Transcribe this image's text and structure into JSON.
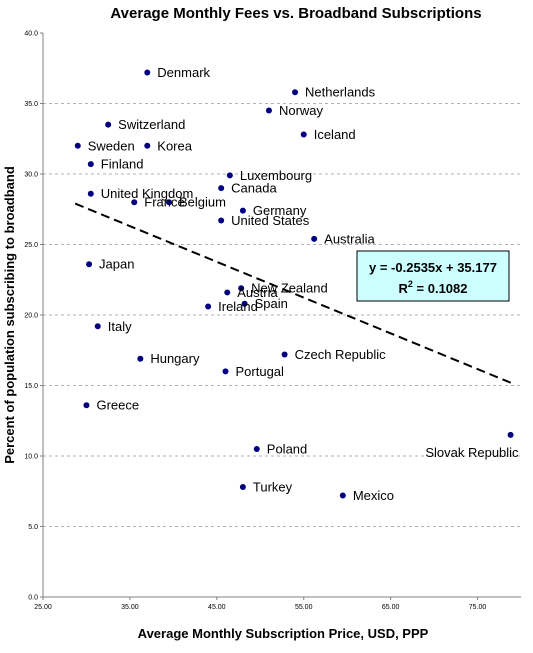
{
  "chart_data": {
    "type": "scatter",
    "title": "Average Monthly Fees vs. Broadband Subscriptions",
    "xlabel": "Average Monthly Subscription Price, USD, PPP",
    "ylabel": "Percent of population subscribing to broadband",
    "xlim": [
      25,
      80
    ],
    "ylim": [
      0,
      40
    ],
    "x_ticks": [
      "25.00",
      "35.00",
      "45.00",
      "55.00",
      "65.00",
      "75.00"
    ],
    "y_ticks": [
      "0.0",
      "5.0",
      "10.0",
      "15.0",
      "20.0",
      "25.0",
      "30.0",
      "35.0",
      "40.0"
    ],
    "grid": "horizontal dashed",
    "marker_color": "#000080",
    "trendline": {
      "slope": -0.2535,
      "intercept": 35.177,
      "style": "dashed"
    },
    "equation": {
      "line1": "y = -0.2535x + 35.177",
      "r2_prefix": "R",
      "r2_sup": "2",
      "r2_suffix": " = 0.1082"
    },
    "equation_box_color": "#ccffff",
    "points": [
      {
        "label": "Denmark",
        "x": 37.0,
        "y": 37.2,
        "label_pos": "right"
      },
      {
        "label": "Netherlands",
        "x": 54.0,
        "y": 35.8,
        "label_pos": "right"
      },
      {
        "label": "Norway",
        "x": 51.0,
        "y": 34.5,
        "label_pos": "right"
      },
      {
        "label": "Switzerland",
        "x": 32.5,
        "y": 33.5,
        "label_pos": "right"
      },
      {
        "label": "Iceland",
        "x": 55.0,
        "y": 32.8,
        "label_pos": "right"
      },
      {
        "label": "Sweden",
        "x": 29.0,
        "y": 32.0,
        "label_pos": "right"
      },
      {
        "label": "Korea",
        "x": 37.0,
        "y": 32.0,
        "label_pos": "right"
      },
      {
        "label": "Finland",
        "x": 30.5,
        "y": 30.7,
        "label_pos": "right"
      },
      {
        "label": "Luxembourg",
        "x": 46.5,
        "y": 29.9,
        "label_pos": "right"
      },
      {
        "label": "Canada",
        "x": 45.5,
        "y": 29.0,
        "label_pos": "right"
      },
      {
        "label": "United Kingdom",
        "x": 30.5,
        "y": 28.6,
        "label_pos": "right"
      },
      {
        "label": "France",
        "x": 35.5,
        "y": 28.0,
        "label_pos": "right"
      },
      {
        "label": "Belgium",
        "x": 39.5,
        "y": 28.0,
        "label_pos": "right"
      },
      {
        "label": "Germany",
        "x": 48.0,
        "y": 27.4,
        "label_pos": "right"
      },
      {
        "label": "United States",
        "x": 45.5,
        "y": 26.7,
        "label_pos": "right"
      },
      {
        "label": "Australia",
        "x": 56.2,
        "y": 25.4,
        "label_pos": "right"
      },
      {
        "label": "Japan",
        "x": 30.3,
        "y": 23.6,
        "label_pos": "right"
      },
      {
        "label": "New Zealand",
        "x": 47.8,
        "y": 21.9,
        "label_pos": "right"
      },
      {
        "label": "Austria",
        "x": 46.2,
        "y": 21.6,
        "label_pos": "right"
      },
      {
        "label": "Spain",
        "x": 48.2,
        "y": 20.8,
        "label_pos": "right"
      },
      {
        "label": "Ireland",
        "x": 44.0,
        "y": 20.6,
        "label_pos": "right"
      },
      {
        "label": "Italy",
        "x": 31.3,
        "y": 19.2,
        "label_pos": "right"
      },
      {
        "label": "Czech Republic",
        "x": 52.8,
        "y": 17.2,
        "label_pos": "right"
      },
      {
        "label": "Hungary",
        "x": 36.2,
        "y": 16.9,
        "label_pos": "right"
      },
      {
        "label": "Portugal",
        "x": 46.0,
        "y": 16.0,
        "label_pos": "right"
      },
      {
        "label": "Greece",
        "x": 30.0,
        "y": 13.6,
        "label_pos": "right"
      },
      {
        "label": "Slovak Republic",
        "x": 78.8,
        "y": 11.5,
        "label_pos": "below-left"
      },
      {
        "label": "Poland",
        "x": 49.6,
        "y": 10.5,
        "label_pos": "right"
      },
      {
        "label": "Turkey",
        "x": 48.0,
        "y": 7.8,
        "label_pos": "right"
      },
      {
        "label": "Mexico",
        "x": 59.5,
        "y": 7.2,
        "label_pos": "right"
      }
    ]
  }
}
